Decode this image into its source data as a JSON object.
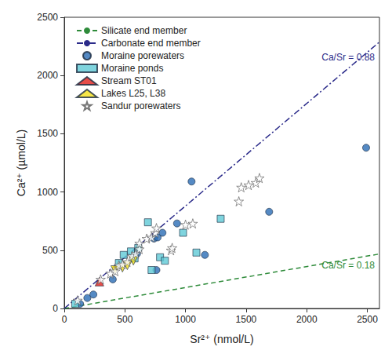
{
  "chart_data": {
    "type": "scatter",
    "xlabel": "Sr²⁺ (nmol/L)",
    "ylabel": "Ca²⁺ (µmol/L)",
    "xlim": [
      0,
      2600
    ],
    "xticks": [
      0,
      500,
      1000,
      1500,
      2000,
      2500
    ],
    "ylim": [
      0,
      2500
    ],
    "yticks": [
      0,
      500,
      1000,
      1500,
      2000,
      2500
    ],
    "grid": false,
    "legend": "upper left",
    "series": [
      {
        "name": "Silicate end member",
        "type": "line",
        "line_style": "dashed",
        "color": "#2e8b3a",
        "annotation": "Ca/Sr = 0.18",
        "x": [
          0,
          2600
        ],
        "values": [
          0,
          468
        ]
      },
      {
        "name": "Carbonate end member",
        "type": "line",
        "line_style": "dashdot",
        "color": "#2b2b8a",
        "annotation": "Ca/Sr = 0.88",
        "x": [
          0,
          2600
        ],
        "values": [
          0,
          2288
        ]
      },
      {
        "name": "Moraine porewaters",
        "type": "scatter",
        "marker": "circle",
        "color": "#2a6db5",
        "x": [
          130,
          190,
          240,
          400,
          600,
          740,
          770,
          810,
          760,
          930,
          1050,
          1160,
          1690,
          2490
        ],
        "values": [
          40,
          90,
          120,
          250,
          470,
          600,
          610,
          650,
          330,
          730,
          1090,
          460,
          830,
          1380
        ]
      },
      {
        "name": "Moraine ponds",
        "type": "scatter",
        "marker": "square",
        "color": "#5fc9d6",
        "x": [
          90,
          450,
          490,
          550,
          580,
          610,
          690,
          720,
          790,
          830,
          980,
          1090,
          1290
        ],
        "values": [
          40,
          390,
          460,
          490,
          430,
          520,
          740,
          330,
          440,
          410,
          650,
          480,
          770
        ]
      },
      {
        "name": "Stream ST01",
        "type": "scatter",
        "marker": "triangle",
        "color": "#e0201b",
        "x": [
          290
        ],
        "values": [
          230
        ]
      },
      {
        "name": "Lakes L25, L38",
        "type": "scatter",
        "marker": "triangle-down",
        "color": "#f5e11a",
        "x": [
          420,
          480,
          520,
          570
        ],
        "values": [
          330,
          350,
          370,
          410
        ]
      },
      {
        "name": "Sandur porewaters",
        "type": "scatter",
        "marker": "star",
        "color": "#ffffff",
        "x": [
          110,
          300,
          380,
          420,
          450,
          480,
          520,
          560,
          590,
          620,
          620,
          680,
          720,
          750,
          760,
          880,
          890,
          1000,
          1060,
          1440,
          1460,
          1520,
          1580,
          1610
        ],
        "values": [
          70,
          250,
          300,
          320,
          370,
          380,
          400,
          450,
          470,
          510,
          560,
          600,
          610,
          650,
          690,
          500,
          520,
          720,
          730,
          920,
          1040,
          1060,
          1080,
          1120
        ]
      }
    ]
  }
}
